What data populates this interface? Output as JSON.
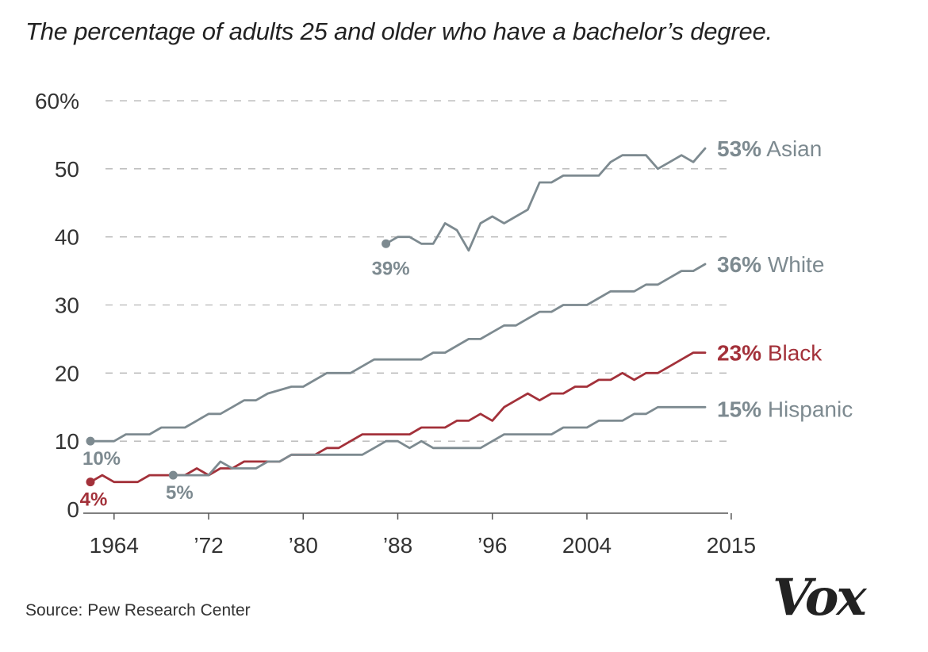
{
  "title": "The percentage of adults 25 and older who have a bachelor’s degree.",
  "source": "Source: Pew Research Center",
  "logo": "Vox",
  "colors": {
    "gray": "#7d8a90",
    "red": "#a3313a",
    "grid": "#b5b5b5",
    "text": "#333333"
  },
  "chart_data": {
    "type": "line",
    "title": "The percentage of adults 25 and older who have a bachelor’s degree.",
    "xlabel": "",
    "ylabel": "",
    "xlim": [
      1962,
      2015
    ],
    "ylim": [
      0,
      60
    ],
    "grid": true,
    "y_ticks": [
      {
        "value": 60,
        "label": "60%"
      },
      {
        "value": 50,
        "label": "50"
      },
      {
        "value": 40,
        "label": "40"
      },
      {
        "value": 30,
        "label": "30"
      },
      {
        "value": 20,
        "label": "20"
      },
      {
        "value": 10,
        "label": "10"
      },
      {
        "value": 0,
        "label": "0"
      }
    ],
    "x_ticks": [
      {
        "value": 1964,
        "label": "1964"
      },
      {
        "value": 1972,
        "label": "’72"
      },
      {
        "value": 1980,
        "label": "’80"
      },
      {
        "value": 1988,
        "label": "’88"
      },
      {
        "value": 1996,
        "label": "’96"
      },
      {
        "value": 2004,
        "label": "2004"
      },
      {
        "value": 2015,
        "label": "2015"
      }
    ],
    "series": [
      {
        "name": "White",
        "color": "#7d8a90",
        "end_value": "36%",
        "start_label": "10%",
        "x": [
          1962,
          1964,
          1965,
          1967,
          1968,
          1970,
          1971,
          1972,
          1973,
          1974,
          1975,
          1976,
          1977,
          1979,
          1980,
          1981,
          1982,
          1983,
          1984,
          1986,
          1987,
          1988,
          1989,
          1990,
          1991,
          1992,
          1993,
          1994,
          1995,
          1996,
          1997,
          1998,
          1999,
          2000,
          2001,
          2002,
          2003,
          2004,
          2005,
          2006,
          2007,
          2008,
          2009,
          2010,
          2011,
          2012,
          2013,
          2014
        ],
        "y": [
          10,
          10,
          11,
          11,
          12,
          12,
          13,
          14,
          14,
          15,
          16,
          16,
          17,
          18,
          18,
          19,
          20,
          20,
          20,
          22,
          22,
          22,
          22,
          22,
          23,
          23,
          24,
          25,
          25,
          26,
          27,
          27,
          28,
          29,
          29,
          30,
          30,
          30,
          31,
          32,
          32,
          32,
          33,
          33,
          34,
          35,
          35,
          36
        ]
      },
      {
        "name": "Black",
        "color": "#a3313a",
        "end_value": "23%",
        "start_label": "4%",
        "x": [
          1962,
          1963,
          1964,
          1965,
          1966,
          1967,
          1968,
          1969,
          1970,
          1971,
          1972,
          1973,
          1974,
          1975,
          1976,
          1977,
          1978,
          1979,
          1980,
          1981,
          1982,
          1983,
          1984,
          1985,
          1986,
          1987,
          1988,
          1989,
          1990,
          1991,
          1992,
          1993,
          1994,
          1995,
          1996,
          1997,
          1998,
          1999,
          2000,
          2001,
          2002,
          2003,
          2004,
          2005,
          2006,
          2007,
          2008,
          2009,
          2010,
          2011,
          2012,
          2013,
          2014
        ],
        "y": [
          4,
          5,
          4,
          4,
          4,
          5,
          5,
          5,
          5,
          6,
          5,
          6,
          6,
          7,
          7,
          7,
          7,
          8,
          8,
          8,
          9,
          9,
          10,
          11,
          11,
          11,
          11,
          11,
          12,
          12,
          12,
          13,
          13,
          14,
          13,
          15,
          16,
          17,
          16,
          17,
          17,
          18,
          18,
          19,
          19,
          20,
          19,
          20,
          20,
          21,
          22,
          23,
          23
        ]
      },
      {
        "name": "Hispanic",
        "color": "#7d8a90",
        "end_value": "15%",
        "start_label": "5%",
        "x": [
          1969,
          1970,
          1971,
          1972,
          1973,
          1974,
          1975,
          1976,
          1977,
          1978,
          1979,
          1980,
          1981,
          1982,
          1983,
          1984,
          1985,
          1986,
          1987,
          1988,
          1989,
          1990,
          1991,
          1992,
          1993,
          1994,
          1995,
          1996,
          1997,
          1998,
          1999,
          2000,
          2001,
          2002,
          2003,
          2004,
          2005,
          2006,
          2007,
          2008,
          2009,
          2010,
          2011,
          2012,
          2013,
          2014
        ],
        "y": [
          5,
          5,
          5,
          5,
          7,
          6,
          6,
          6,
          7,
          7,
          8,
          8,
          8,
          8,
          8,
          8,
          8,
          9,
          10,
          10,
          9,
          10,
          9,
          9,
          9,
          9,
          9,
          10,
          11,
          11,
          11,
          11,
          11,
          12,
          12,
          12,
          13,
          13,
          13,
          14,
          14,
          15,
          15,
          15,
          15,
          15
        ]
      },
      {
        "name": "Asian",
        "color": "#7d8a90",
        "end_value": "53%",
        "start_label": "39%",
        "x": [
          1987,
          1988,
          1989,
          1990,
          1991,
          1992,
          1993,
          1994,
          1995,
          1996,
          1997,
          1998,
          1999,
          2000,
          2001,
          2002,
          2003,
          2004,
          2005,
          2006,
          2007,
          2008,
          2009,
          2010,
          2011,
          2012,
          2013,
          2014
        ],
        "y": [
          39,
          40,
          40,
          39,
          39,
          42,
          41,
          38,
          42,
          43,
          42,
          43,
          44,
          48,
          48,
          49,
          49,
          49,
          49,
          51,
          52,
          52,
          52,
          50,
          51,
          52,
          51,
          53
        ]
      }
    ]
  }
}
